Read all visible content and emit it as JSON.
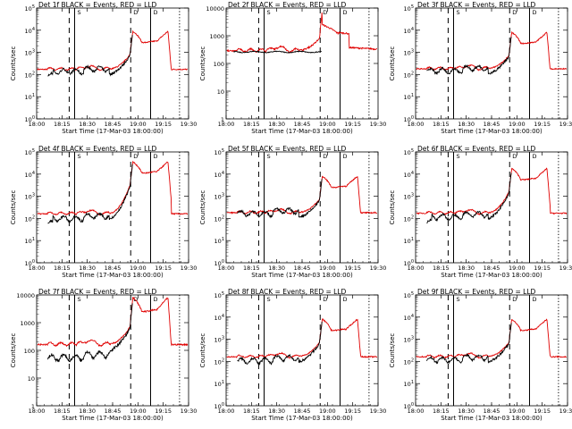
{
  "chart_data": [
    {
      "type": "line",
      "title": "Det  1f BLACK = Events, RED = LLD",
      "xlabel": "Start Time (17-Mar-03 18:00:00)",
      "ylabel": "Counts/sec",
      "xticks": [
        "18:00",
        "18:15",
        "18:30",
        "18:45",
        "19:00",
        "19:15",
        "19:30"
      ],
      "xlim": [
        0,
        42
      ],
      "yscale": "log",
      "ylim": [
        1,
        100000
      ],
      "yticks": [
        "10^0",
        "10^1",
        "10^2",
        "10^3",
        "10^4",
        "10^5"
      ],
      "peak": 10000,
      "base": 180,
      "black_base": 90,
      "black_start": 3,
      "black_jumps": [
        {
          "x": 4.5,
          "to": 140
        }
      ],
      "rate_fac": [
        1.25,
        0.8
      ],
      "flare_shape": "a",
      "solid_lines": [
        10.5,
        31.5
      ],
      "dashed_lines": [
        9,
        26
      ],
      "dotted_lines": [
        39.5
      ],
      "markers": [
        "S",
        "D",
        "D"
      ],
      "series": [
        {
          "name": "BLACK = Events",
          "color": "#000000"
        },
        {
          "name": "RED = LLD",
          "color": "#e00000"
        }
      ]
    },
    {
      "type": "line",
      "title": "Det  2f BLACK = Events, RED = LLD",
      "xlabel": "Start Time (17-Mar-03 18:00:00)",
      "ylabel": "Counts/sec",
      "xticks": [
        "18:00",
        "18:15",
        "18:30",
        "18:45",
        "19:00",
        "19:15",
        "19:30"
      ],
      "xlim": [
        0,
        42
      ],
      "yscale": "log",
      "ylim": [
        1,
        10000
      ],
      "yticks": [
        "1",
        "10",
        "100",
        "1000",
        "10000"
      ],
      "peak": 10000,
      "base": 300,
      "black_base": 260,
      "black_start": 2,
      "black_jumps": [],
      "rate_fac": [
        1,
        1
      ],
      "flare_shape": "b",
      "solid_lines": [
        10.5,
        31.5
      ],
      "dashed_lines": [
        9,
        26
      ],
      "dotted_lines": [
        39.5
      ],
      "markers": [
        "S",
        "D",
        "D"
      ],
      "series": [
        {
          "name": "BLACK = Events",
          "color": "#000000"
        },
        {
          "name": "RED = LLD",
          "color": "#e00000"
        }
      ]
    },
    {
      "type": "line",
      "title": "Det  3f BLACK = Events, RED = LLD",
      "xlabel": "Start Time (17-Mar-03 18:00:00)",
      "ylabel": "Counts/sec",
      "xticks": [
        "18:00",
        "18:15",
        "18:30",
        "18:45",
        "19:00",
        "19:15",
        "19:30"
      ],
      "xlim": [
        0,
        42
      ],
      "yscale": "log",
      "ylim": [
        1,
        100000
      ],
      "yticks": [
        "10^0",
        "10^1",
        "10^2",
        "10^3",
        "10^4",
        "10^5"
      ],
      "peak": 9000,
      "base": 190,
      "black_base": 150,
      "black_start": 3,
      "black_jumps": [],
      "rate_fac": [
        1.2,
        0.85
      ],
      "flare_shape": "c",
      "solid_lines": [
        10.5,
        31.5
      ],
      "dashed_lines": [
        9,
        26
      ],
      "dotted_lines": [
        39.5
      ],
      "markers": [
        "S",
        "D",
        "D"
      ],
      "series": [
        {
          "name": "BLACK = Events",
          "color": "#000000"
        },
        {
          "name": "RED = LLD",
          "color": "#e00000"
        }
      ]
    },
    {
      "type": "line",
      "title": "Det  4f BLACK = Events, RED = LLD",
      "xlabel": "Start Time (17-Mar-03 18:00:00)",
      "ylabel": "Counts/sec",
      "xticks": [
        "18:00",
        "18:15",
        "18:30",
        "18:45",
        "19:00",
        "19:15",
        "19:30"
      ],
      "xlim": [
        0,
        42
      ],
      "yscale": "log",
      "ylim": [
        1,
        100000
      ],
      "yticks": [
        "10^0",
        "10^1",
        "10^2",
        "10^3",
        "10^4",
        "10^5"
      ],
      "peak": 40000,
      "base": 170,
      "black_base": 60,
      "black_start": 3,
      "black_jumps": [
        {
          "x": 4.5,
          "to": 100
        }
      ],
      "rate_fac": [
        1.3,
        0.75
      ],
      "flare_shape": "a",
      "solid_lines": [
        10.5,
        31.5
      ],
      "dashed_lines": [
        9,
        26
      ],
      "dotted_lines": [
        39.5
      ],
      "markers": [
        "S",
        "D",
        "D"
      ],
      "series": [
        {
          "name": "BLACK = Events",
          "color": "#000000"
        },
        {
          "name": "RED = LLD",
          "color": "#e00000"
        }
      ]
    },
    {
      "type": "line",
      "title": "Det  5f BLACK = Events, RED = LLD",
      "xlabel": "Start Time (17-Mar-03 18:00:00)",
      "ylabel": "Counts/sec",
      "xticks": [
        "18:00",
        "18:15",
        "18:30",
        "18:45",
        "19:00",
        "19:15",
        "19:30"
      ],
      "xlim": [
        0,
        42
      ],
      "yscale": "log",
      "ylim": [
        1,
        100000
      ],
      "yticks": [
        "10^0",
        "10^1",
        "10^2",
        "10^3",
        "10^4",
        "10^5"
      ],
      "peak": 9000,
      "base": 190,
      "black_base": 170,
      "black_start": 3,
      "black_jumps": [],
      "rate_fac": [
        1.15,
        0.9
      ],
      "flare_shape": "c",
      "solid_lines": [
        10.5,
        31.5
      ],
      "dashed_lines": [
        9,
        26
      ],
      "dotted_lines": [
        39.5
      ],
      "markers": [
        "S",
        "D",
        "D"
      ],
      "series": [
        {
          "name": "BLACK = Events",
          "color": "#000000"
        },
        {
          "name": "RED = LLD",
          "color": "#e00000"
        }
      ]
    },
    {
      "type": "line",
      "title": "Det  6f BLACK = Events, RED = LLD",
      "xlabel": "Start Time (17-Mar-03 18:00:00)",
      "ylabel": "Counts/sec",
      "xticks": [
        "18:00",
        "18:15",
        "18:30",
        "18:45",
        "19:00",
        "19:15",
        "19:30"
      ],
      "xlim": [
        0,
        42
      ],
      "yscale": "log",
      "ylim": [
        1,
        100000
      ],
      "yticks": [
        "10^0",
        "10^1",
        "10^2",
        "10^3",
        "10^4",
        "10^5"
      ],
      "peak": 20000,
      "base": 180,
      "black_base": 70,
      "black_start": 3,
      "black_jumps": [
        {
          "x": 4.5,
          "to": 120
        }
      ],
      "rate_fac": [
        1.25,
        0.85
      ],
      "flare_shape": "a",
      "solid_lines": [
        10.5,
        31.5
      ],
      "dashed_lines": [
        9,
        26
      ],
      "dotted_lines": [
        39.5
      ],
      "markers": [
        "S",
        "D",
        "D"
      ],
      "series": [
        {
          "name": "BLACK = Events",
          "color": "#000000"
        },
        {
          "name": "RED = LLD",
          "color": "#e00000"
        }
      ]
    },
    {
      "type": "line",
      "title": "Det  7f BLACK = Events, RED = LLD",
      "xlabel": "Start Time (17-Mar-03 18:00:00)",
      "ylabel": "Counts/sec",
      "xticks": [
        "18:00",
        "18:15",
        "18:30",
        "18:45",
        "19:00",
        "19:15",
        "19:30"
      ],
      "xlim": [
        0,
        42
      ],
      "yscale": "log",
      "ylim": [
        1,
        10000
      ],
      "yticks": [
        "1",
        "10",
        "100",
        "1000",
        "10000"
      ],
      "peak": 9000,
      "base": 170,
      "black_base": 55,
      "black_start": 3,
      "black_jumps": [],
      "rate_fac": [
        1.4,
        0.8
      ],
      "flare_shape": "a",
      "solid_lines": [
        10.5,
        31.5
      ],
      "dashed_lines": [
        9,
        26
      ],
      "dotted_lines": [
        39.5
      ],
      "markers": [
        "S",
        "D",
        "D"
      ],
      "series": [
        {
          "name": "BLACK = Events",
          "color": "#000000"
        },
        {
          "name": "RED = LLD",
          "color": "#e00000"
        }
      ]
    },
    {
      "type": "line",
      "title": "Det  8f BLACK = Events, RED = LLD",
      "xlabel": "Start Time (17-Mar-03 18:00:00)",
      "ylabel": "Counts/sec",
      "xticks": [
        "18:00",
        "18:15",
        "18:30",
        "18:45",
        "19:00",
        "19:15",
        "19:30"
      ],
      "xlim": [
        0,
        42
      ],
      "yscale": "log",
      "ylim": [
        1,
        100000
      ],
      "yticks": [
        "10^0",
        "10^1",
        "10^2",
        "10^3",
        "10^4",
        "10^5"
      ],
      "peak": 9000,
      "base": 170,
      "black_base": 110,
      "black_start": 3,
      "black_jumps": [],
      "rate_fac": [
        1.2,
        0.85
      ],
      "flare_shape": "c",
      "solid_lines": [
        10.5,
        31.5
      ],
      "dashed_lines": [
        9,
        26
      ],
      "dotted_lines": [
        39.5
      ],
      "markers": [
        "S",
        "D",
        "D"
      ],
      "series": [
        {
          "name": "BLACK = Events",
          "color": "#000000"
        },
        {
          "name": "RED = LLD",
          "color": "#e00000"
        }
      ]
    },
    {
      "type": "line",
      "title": "Det  9f BLACK = Events, RED = LLD",
      "xlabel": "Start Time (17-Mar-03 18:00:00)",
      "ylabel": "Counts/sec",
      "xticks": [
        "18:00",
        "18:15",
        "18:30",
        "18:45",
        "19:00",
        "19:15",
        "19:30"
      ],
      "xlim": [
        0,
        42
      ],
      "yscale": "log",
      "ylim": [
        1,
        100000
      ],
      "yticks": [
        "10^0",
        "10^1",
        "10^2",
        "10^3",
        "10^4",
        "10^5"
      ],
      "peak": 9000,
      "base": 170,
      "black_base": 120,
      "black_start": 3,
      "black_jumps": [],
      "rate_fac": [
        1.2,
        0.85
      ],
      "flare_shape": "c",
      "solid_lines": [
        10.5,
        31.5
      ],
      "dashed_lines": [
        9,
        26
      ],
      "dotted_lines": [
        39.5
      ],
      "markers": [
        "S",
        "D",
        "D"
      ],
      "series": [
        {
          "name": "BLACK = Events",
          "color": "#000000"
        },
        {
          "name": "RED = LLD",
          "color": "#e00000"
        }
      ]
    }
  ]
}
